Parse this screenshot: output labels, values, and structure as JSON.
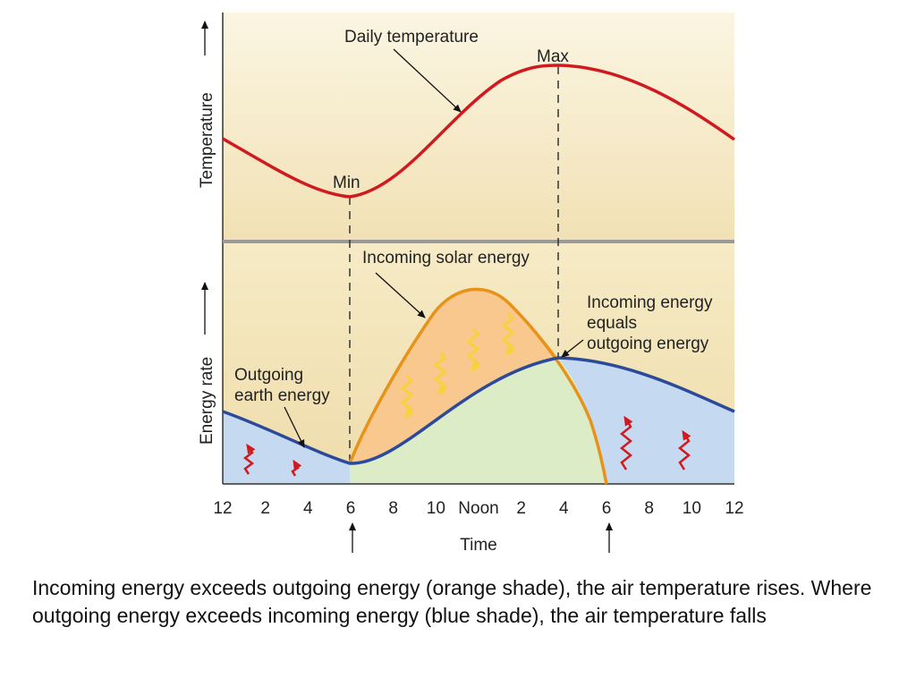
{
  "diagram": {
    "top_panel": {
      "y_axis_label": "Temperature",
      "curve_label": "Daily temperature",
      "max_label": "Max",
      "min_label": "Min"
    },
    "bottom_panel": {
      "y_axis_label": "Energy rate",
      "incoming_label": "Incoming solar energy",
      "outgoing_label_line1": "Outgoing",
      "outgoing_label_line2": "earth energy",
      "equal_label_line1": "Incoming energy",
      "equal_label_line2": "equals",
      "equal_label_line3": "outgoing energy"
    },
    "x_axis": {
      "label": "Time",
      "ticks": [
        "12",
        "2",
        "4",
        "6",
        "8",
        "10",
        "Noon",
        "2",
        "4",
        "6",
        "8",
        "10",
        "12"
      ]
    },
    "colors": {
      "temperature_curve": "#d11a1f",
      "incoming_curve": "#e8921a",
      "outgoing_curve": "#2b4a9c",
      "orange_shade": "#f8c88e",
      "blue_shade": "#c5daf0",
      "green_shade": "#dcecc6",
      "panel_background": "#f6eccb"
    }
  },
  "caption": "Incoming energy exceeds outgoing energy (orange shade), the air temperature rises. Where outgoing energy exceeds incoming energy (blue shade), the air temperature falls"
}
